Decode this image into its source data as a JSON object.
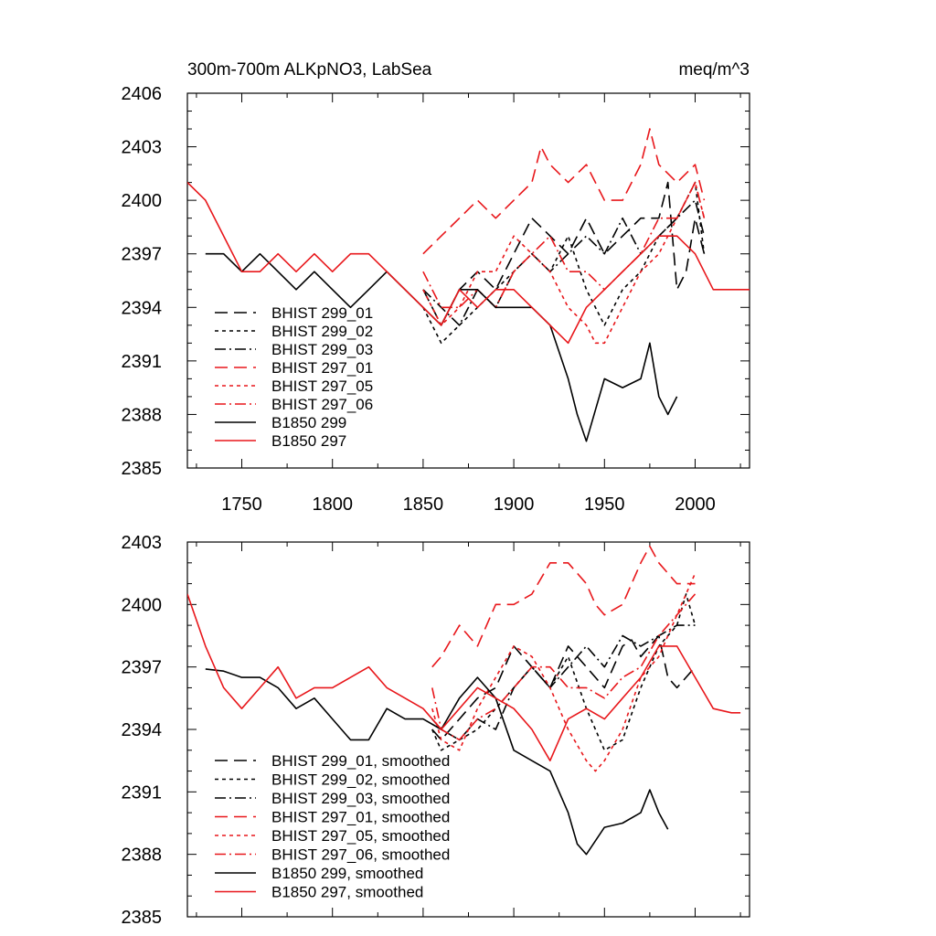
{
  "chart_data": [
    {
      "type": "line",
      "title": "300m-700m ALKpNO3, LabSea",
      "units": "meq/m^3",
      "xlabel": "",
      "ylabel": "",
      "xlim": [
        1720,
        2030
      ],
      "ylim": [
        2385,
        2406
      ],
      "x_ticks": [
        1750,
        1800,
        1850,
        1900,
        1950,
        2000
      ],
      "x_tick_labels": [
        "1750",
        "1800",
        "1850",
        "1900",
        "1950",
        "2000"
      ],
      "y_ticks": [
        2385,
        2388,
        2391,
        2394,
        2397,
        2400,
        2403,
        2406
      ],
      "y_tick_labels": [
        "2385",
        "2388",
        "2391",
        "2394",
        "2397",
        "2400",
        "2403",
        "2406"
      ],
      "legend_position": "lower-left",
      "series": [
        {
          "name": "BHIST 299_01",
          "color": "#000000",
          "dash": "dashed",
          "x": [
            1850,
            1860,
            1870,
            1880,
            1890,
            1900,
            1910,
            1920,
            1930,
            1940,
            1950,
            1960,
            1970,
            1980,
            1985,
            1990,
            1995,
            2000,
            2005
          ],
          "y": [
            2395,
            2393,
            2395,
            2396,
            2395,
            2397,
            2399,
            2398,
            2397,
            2399,
            2397,
            2398,
            2399,
            2399,
            2401,
            2395,
            2396,
            2399,
            2397
          ]
        },
        {
          "name": "BHIST 299_02",
          "color": "#000000",
          "dash": "dotted",
          "x": [
            1850,
            1860,
            1870,
            1880,
            1890,
            1900,
            1910,
            1920,
            1930,
            1940,
            1950,
            1960,
            1970,
            1980,
            1990,
            2000,
            2005
          ],
          "y": [
            2394,
            2392,
            2393,
            2394,
            2395,
            2396,
            2397,
            2396,
            2398,
            2395,
            2393,
            2395,
            2396,
            2398,
            2399,
            2401,
            2397
          ]
        },
        {
          "name": "BHIST 299_03",
          "color": "#000000",
          "dash": "dashdot",
          "x": [
            1850,
            1860,
            1870,
            1880,
            1890,
            1900,
            1910,
            1920,
            1930,
            1940,
            1950,
            1960,
            1970,
            1980,
            1990,
            2000,
            2005
          ],
          "y": [
            2395,
            2394,
            2393,
            2395,
            2394,
            2396,
            2397,
            2396,
            2397,
            2398,
            2397,
            2399,
            2397,
            2398,
            2399,
            2400,
            2398
          ]
        },
        {
          "name": "BHIST 297_01",
          "color": "#e8171b",
          "dash": "dashed",
          "x": [
            1850,
            1860,
            1870,
            1880,
            1890,
            1900,
            1910,
            1915,
            1920,
            1930,
            1940,
            1950,
            1960,
            1970,
            1975,
            1980,
            1990,
            2000,
            2005
          ],
          "y": [
            2397,
            2398,
            2399,
            2400,
            2399,
            2400,
            2401,
            2403,
            2402,
            2401,
            2402,
            2400,
            2400,
            2402,
            2404,
            2402,
            2401,
            2402,
            2400
          ]
        },
        {
          "name": "BHIST 297_05",
          "color": "#e8171b",
          "dash": "dotted",
          "x": [
            1850,
            1860,
            1870,
            1880,
            1890,
            1900,
            1910,
            1920,
            1930,
            1940,
            1945,
            1950,
            1960,
            1970,
            1980,
            1990,
            2000,
            2005
          ],
          "y": [
            2395,
            2393,
            2394,
            2396,
            2396,
            2398,
            2397,
            2396,
            2394,
            2393,
            2392,
            2392,
            2394,
            2396,
            2397,
            2399,
            2401,
            2399
          ]
        },
        {
          "name": "BHIST 297_06",
          "color": "#e8171b",
          "dash": "dashdot",
          "x": [
            1850,
            1860,
            1870,
            1880,
            1890,
            1900,
            1910,
            1920,
            1930,
            1940,
            1950,
            1960,
            1970,
            1980,
            1990,
            2000,
            2005
          ],
          "y": [
            2396,
            2394,
            2394,
            2395,
            2394,
            2396,
            2397,
            2398,
            2396,
            2396,
            2395,
            2396,
            2397,
            2399,
            2399,
            2401,
            2399
          ]
        },
        {
          "name": "B1850 299",
          "color": "#000000",
          "dash": "solid",
          "x": [
            1730,
            1740,
            1750,
            1760,
            1770,
            1780,
            1790,
            1800,
            1810,
            1820,
            1830,
            1840,
            1850,
            1860,
            1870,
            1880,
            1890,
            1900,
            1910,
            1920,
            1930,
            1935,
            1940,
            1950,
            1960,
            1970,
            1975,
            1980,
            1985,
            1990
          ],
          "y": [
            2397,
            2397,
            2396,
            2397,
            2396,
            2395,
            2396,
            2395,
            2394,
            2395,
            2396,
            2395,
            2394,
            2393,
            2395,
            2395,
            2394,
            2394,
            2394,
            2393,
            2390,
            2388,
            2386.5,
            2390,
            2389.5,
            2390,
            2392,
            2389,
            2388,
            2389
          ]
        },
        {
          "name": "B1850 297",
          "color": "#e8171b",
          "dash": "solid",
          "x": [
            1720,
            1730,
            1740,
            1750,
            1760,
            1770,
            1780,
            1790,
            1800,
            1810,
            1820,
            1830,
            1840,
            1850,
            1860,
            1870,
            1880,
            1890,
            1900,
            1910,
            1920,
            1930,
            1940,
            1950,
            1960,
            1970,
            1980,
            1990,
            2000,
            2010,
            2020,
            2030
          ],
          "y": [
            2401,
            2400,
            2398,
            2396,
            2396,
            2397,
            2396,
            2397,
            2396,
            2397,
            2397,
            2396,
            2395,
            2394,
            2393,
            2395,
            2394,
            2395,
            2395,
            2394,
            2393,
            2392,
            2394,
            2395,
            2396,
            2397,
            2398,
            2398,
            2397,
            2395,
            2395,
            2395
          ]
        }
      ]
    },
    {
      "type": "line",
      "title": "",
      "xlabel": "",
      "ylabel": "",
      "xlim": [
        1720,
        2030
      ],
      "ylim": [
        2385,
        2403
      ],
      "x_ticks": [
        1750,
        1800,
        1850,
        1900,
        1950,
        2000
      ],
      "y_ticks": [
        2385,
        2388,
        2391,
        2394,
        2397,
        2400,
        2403
      ],
      "y_tick_labels": [
        "2385",
        "2388",
        "2391",
        "2394",
        "2397",
        "2400",
        "2403"
      ],
      "legend_position": "lower-left",
      "series": [
        {
          "name": "BHIST 299_01, smoothed",
          "color": "#000000",
          "dash": "dashed",
          "x": [
            1855,
            1860,
            1870,
            1880,
            1890,
            1900,
            1910,
            1920,
            1930,
            1940,
            1950,
            1960,
            1965,
            1970,
            1980,
            1985,
            1990,
            2000
          ],
          "y": [
            2394,
            2393.5,
            2394.5,
            2395.5,
            2396,
            2398,
            2397,
            2396,
            2398,
            2397,
            2396,
            2398,
            2398.3,
            2397.5,
            2398.5,
            2396.5,
            2396,
            2397
          ]
        },
        {
          "name": "BHIST 299_02, smoothed",
          "color": "#000000",
          "dash": "dotted",
          "x": [
            1855,
            1860,
            1870,
            1880,
            1890,
            1900,
            1910,
            1920,
            1930,
            1940,
            1950,
            1960,
            1970,
            1980,
            1990,
            1995,
            2000
          ],
          "y": [
            2394,
            2393,
            2393.5,
            2394,
            2395,
            2396,
            2397,
            2396,
            2397.5,
            2395,
            2393,
            2393.5,
            2396,
            2398,
            2399,
            2400.5,
            2399
          ]
        },
        {
          "name": "BHIST 299_03, smoothed",
          "color": "#000000",
          "dash": "dashdot",
          "x": [
            1855,
            1860,
            1870,
            1880,
            1890,
            1900,
            1910,
            1920,
            1930,
            1940,
            1950,
            1960,
            1970,
            1980,
            1990,
            2000
          ],
          "y": [
            2394.5,
            2394,
            2393.5,
            2394.5,
            2394,
            2396,
            2397,
            2396,
            2397,
            2398,
            2397,
            2398.5,
            2398,
            2398.5,
            2399,
            2399
          ]
        },
        {
          "name": "BHIST 297_01, smoothed",
          "color": "#e8171b",
          "dash": "dashed",
          "x": [
            1855,
            1860,
            1870,
            1880,
            1890,
            1900,
            1910,
            1920,
            1930,
            1940,
            1945,
            1950,
            1960,
            1970,
            1975,
            1980,
            1990,
            2000
          ],
          "y": [
            2397,
            2397.5,
            2399,
            2398,
            2400,
            2400,
            2400.5,
            2402,
            2402,
            2401,
            2400,
            2399.5,
            2400,
            2402,
            2402.8,
            2402,
            2401,
            2401
          ]
        },
        {
          "name": "BHIST 297_05, smoothed",
          "color": "#e8171b",
          "dash": "dotted",
          "x": [
            1855,
            1860,
            1870,
            1880,
            1890,
            1900,
            1910,
            1920,
            1930,
            1940,
            1945,
            1950,
            1960,
            1970,
            1980,
            1990,
            2000
          ],
          "y": [
            2395,
            2393.5,
            2393,
            2395,
            2396.5,
            2398,
            2397.5,
            2396,
            2394,
            2392.5,
            2392,
            2392.5,
            2394,
            2396.5,
            2397.5,
            2399.5,
            2401.5
          ]
        },
        {
          "name": "BHIST 297_06, smoothed",
          "color": "#e8171b",
          "dash": "dashdot",
          "x": [
            1855,
            1860,
            1870,
            1880,
            1890,
            1900,
            1910,
            1920,
            1930,
            1940,
            1950,
            1960,
            1970,
            1980,
            1990,
            2000
          ],
          "y": [
            2396,
            2394,
            2393.5,
            2394.5,
            2395,
            2396,
            2397,
            2397,
            2396,
            2396,
            2395.5,
            2396.5,
            2397,
            2398.5,
            2399.5,
            2400.5
          ]
        },
        {
          "name": "B1850 299, smoothed",
          "color": "#000000",
          "dash": "solid",
          "x": [
            1730,
            1740,
            1750,
            1760,
            1770,
            1780,
            1790,
            1800,
            1810,
            1820,
            1830,
            1840,
            1850,
            1860,
            1870,
            1880,
            1890,
            1900,
            1910,
            1920,
            1930,
            1935,
            1940,
            1950,
            1960,
            1970,
            1975,
            1980,
            1985
          ],
          "y": [
            2396.9,
            2396.8,
            2396.5,
            2396.5,
            2396,
            2395,
            2395.5,
            2394.5,
            2393.5,
            2393.5,
            2395,
            2394.5,
            2394.5,
            2394,
            2395.5,
            2396.5,
            2395.5,
            2393,
            2392.5,
            2392,
            2390,
            2388.5,
            2388,
            2389.3,
            2389.5,
            2390,
            2391.1,
            2390,
            2389.2
          ]
        },
        {
          "name": "B1850 297, smoothed",
          "color": "#e8171b",
          "dash": "solid",
          "x": [
            1720,
            1730,
            1740,
            1750,
            1760,
            1770,
            1780,
            1790,
            1800,
            1810,
            1820,
            1830,
            1840,
            1850,
            1860,
            1870,
            1880,
            1890,
            1900,
            1910,
            1920,
            1930,
            1940,
            1950,
            1960,
            1970,
            1980,
            1990,
            2000,
            2010,
            2020,
            2025
          ],
          "y": [
            2400.5,
            2398,
            2396,
            2395,
            2396,
            2397,
            2395.5,
            2396,
            2396,
            2396.5,
            2397,
            2396,
            2395.5,
            2395,
            2394,
            2395,
            2396,
            2395.5,
            2395,
            2394,
            2392.5,
            2394.5,
            2395,
            2394.5,
            2395.5,
            2396.5,
            2398,
            2398,
            2396.5,
            2395,
            2394.8,
            2394.8
          ]
        }
      ]
    }
  ]
}
